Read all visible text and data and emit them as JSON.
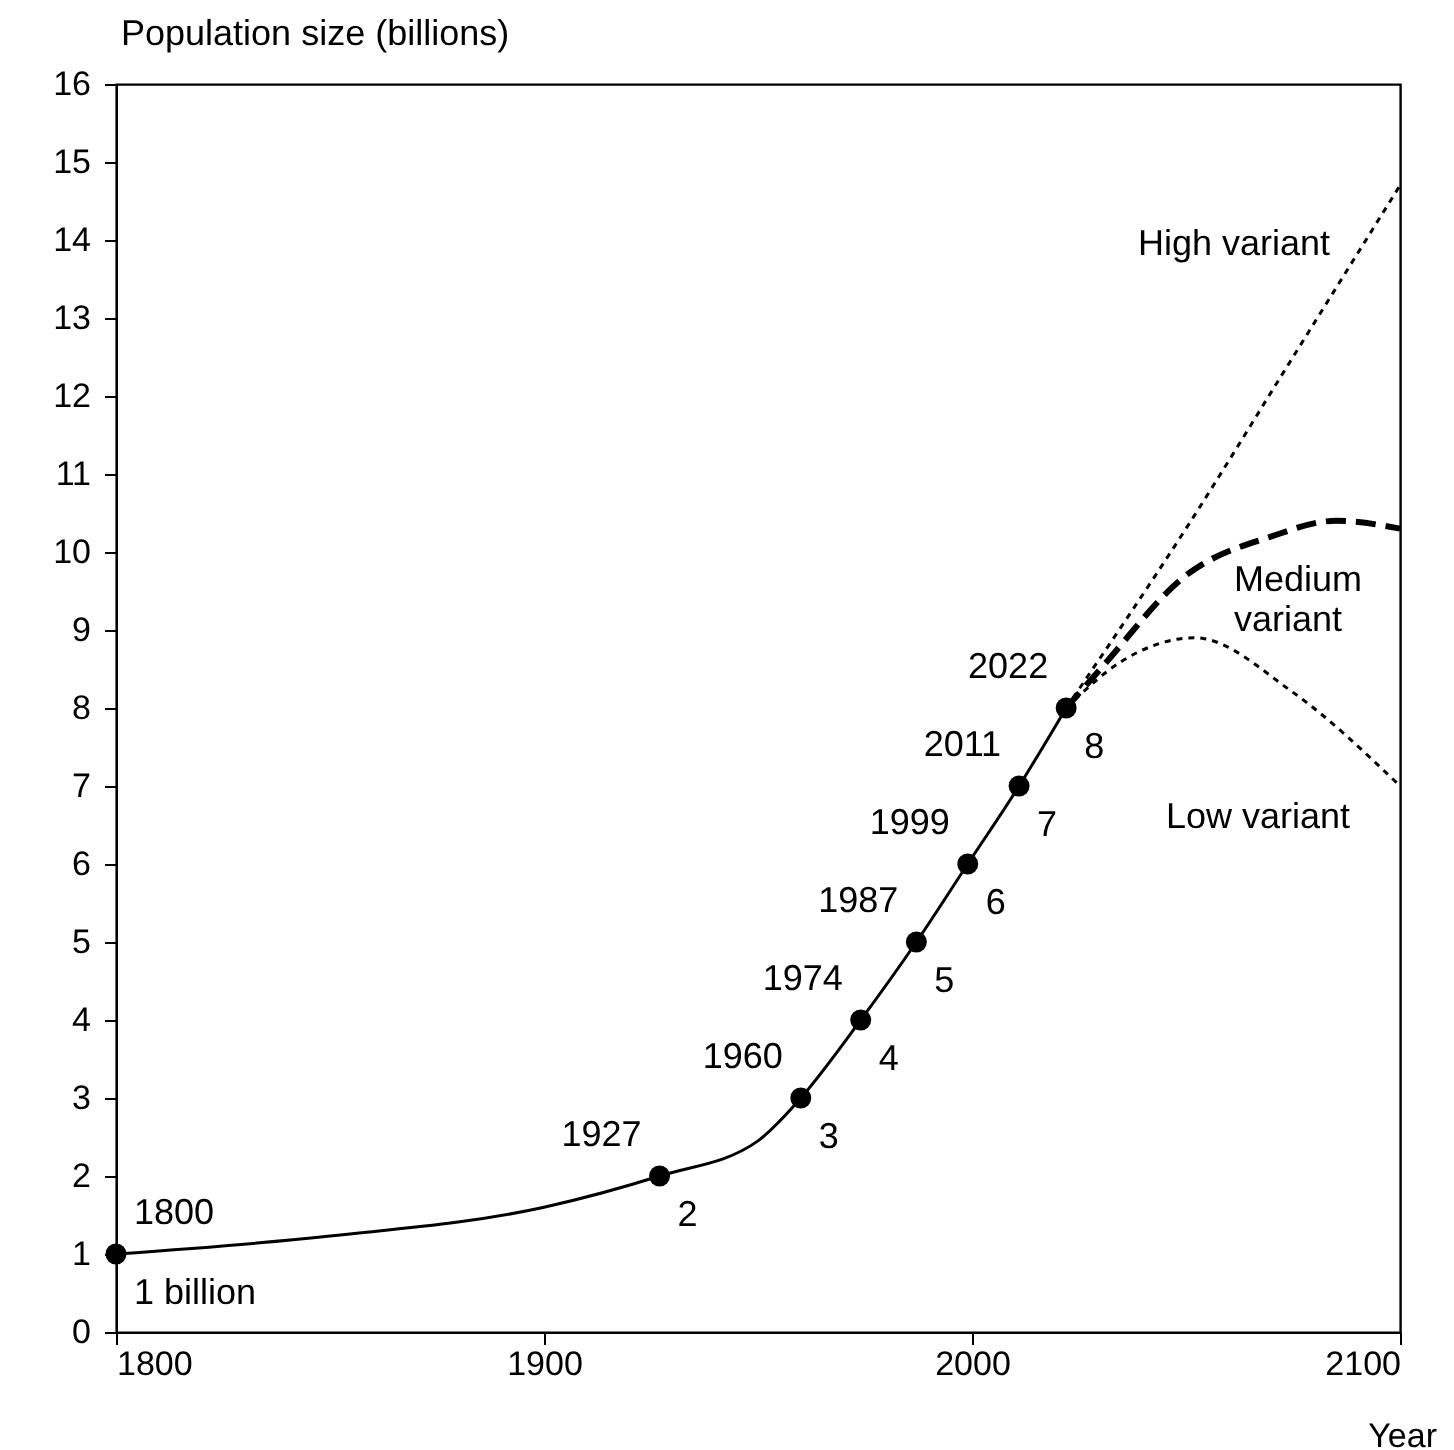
{
  "chart_data": {
    "type": "line",
    "xlabel": "Year",
    "ylabel": "Population size (billions)",
    "xlim": [
      1800,
      2100
    ],
    "xticks": [
      1800,
      1900,
      2000,
      2100
    ],
    "ylim": [
      0,
      16
    ],
    "yticks": [
      0,
      1,
      2,
      3,
      4,
      5,
      6,
      7,
      8,
      9,
      10,
      11,
      12,
      13,
      14,
      15,
      16
    ],
    "series": [
      {
        "color": "#000000",
        "line_style": "solid",
        "x": [
          1800,
          1850,
          1900,
          1927,
          1950,
          1955,
          1960,
          1974,
          1987,
          1999,
          2011,
          2022
        ],
        "values": [
          1,
          1.23,
          1.6,
          2,
          2.45,
          2.7,
          3,
          4,
          5,
          6,
          7,
          8
        ]
      },
      {
        "type": "scatter",
        "color": "#000000",
        "marker": "circle",
        "x": [
          1800,
          1927,
          1960,
          1974,
          1987,
          1999,
          2011,
          2022
        ],
        "values": [
          1,
          2,
          3,
          4,
          5,
          6,
          7,
          8
        ]
      },
      {
        "name": "High variant",
        "color": "#000000",
        "line_style": "dotted",
        "x": [
          2022,
          2050,
          2075,
          2100
        ],
        "values": [
          8,
          10.3,
          12.5,
          14.7
        ]
      },
      {
        "name": "Medium variant",
        "color": "#000000",
        "line_style": "dashed",
        "x": [
          2022,
          2030,
          2050,
          2070,
          2085,
          2100
        ],
        "values": [
          8,
          8.5,
          9.7,
          10.2,
          10.4,
          10.3
        ]
      },
      {
        "name": "Low variant",
        "color": "#000000",
        "line_style": "dotted",
        "x": [
          2022,
          2035,
          2052,
          2075,
          2100
        ],
        "values": [
          8,
          8.6,
          8.9,
          8.2,
          7.0
        ]
      }
    ],
    "annotations": [
      {
        "text": "1800",
        "x": 1800,
        "y": 1
      },
      {
        "text": "1 billion",
        "x": 1800,
        "y": 1
      },
      {
        "text": "1927",
        "x": 1927,
        "y": 2
      },
      {
        "text": "2",
        "x": 1927,
        "y": 2
      },
      {
        "text": "1960",
        "x": 1960,
        "y": 3
      },
      {
        "text": "3",
        "x": 1960,
        "y": 3
      },
      {
        "text": "1974",
        "x": 1974,
        "y": 4
      },
      {
        "text": "4",
        "x": 1974,
        "y": 4
      },
      {
        "text": "1987",
        "x": 1987,
        "y": 5
      },
      {
        "text": "5",
        "x": 1987,
        "y": 5
      },
      {
        "text": "1999",
        "x": 1999,
        "y": 6
      },
      {
        "text": "6",
        "x": 1999,
        "y": 6
      },
      {
        "text": "2011",
        "x": 2011,
        "y": 7
      },
      {
        "text": "7",
        "x": 2011,
        "y": 7
      },
      {
        "text": "2022",
        "x": 2022,
        "y": 8
      },
      {
        "text": "8",
        "x": 2022,
        "y": 8
      }
    ]
  }
}
